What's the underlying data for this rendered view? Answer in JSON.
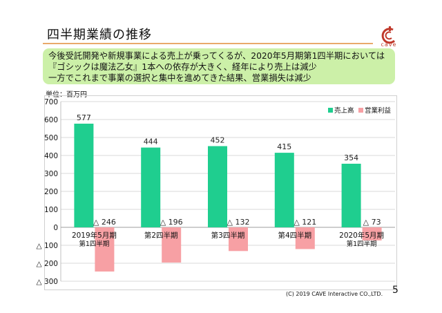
{
  "title": "四半期業績の推移",
  "logo_text": "cave",
  "summary_lines": [
    "今後受託開発や新規事業による売上が乗ってくるが、2020年5月期第1四半期においては",
    "『ゴシックは魔法乙女』1本への依存が大きく、経年により売上は減少",
    "一方でこれまで事業の選択と集中を進めてきた結果、営業損失は減少"
  ],
  "unit_label": "単位：百万円",
  "footer": "(C) 2019 CAVE Interactive CO.,LTD.",
  "page_number": "5",
  "colors": {
    "sales": "#1fce8f",
    "profit": "#f7a0a4",
    "accent_rule": "#e8a96a",
    "summary_bg": "#ccf0a8"
  },
  "chart_data": {
    "type": "bar",
    "categories": [
      [
        "2019年5月期",
        "第1四半期"
      ],
      [
        "第2四半期"
      ],
      [
        "第3四半期"
      ],
      [
        "第4四半期"
      ],
      [
        "2020年5月期",
        "第1四半期"
      ]
    ],
    "series": [
      {
        "name": "売上高",
        "values": [
          577,
          444,
          452,
          415,
          354
        ],
        "labels": [
          "577",
          "444",
          "452",
          "415",
          "354"
        ]
      },
      {
        "name": "営業利益",
        "values": [
          -246,
          -196,
          -132,
          -121,
          -73
        ],
        "labels": [
          "△ 246",
          "△ 196",
          "△ 132",
          "△ 121",
          "△ 73"
        ]
      }
    ],
    "ylim": [
      -300,
      700
    ],
    "yticks": [
      700,
      600,
      500,
      400,
      300,
      200,
      100,
      0,
      -100,
      -200,
      -300
    ],
    "ytick_labels": [
      "700",
      "600",
      "500",
      "400",
      "300",
      "200",
      "100",
      "0",
      "△ 100",
      "△ 200",
      "△ 300"
    ],
    "legend_position": "top-right",
    "grid": true
  }
}
